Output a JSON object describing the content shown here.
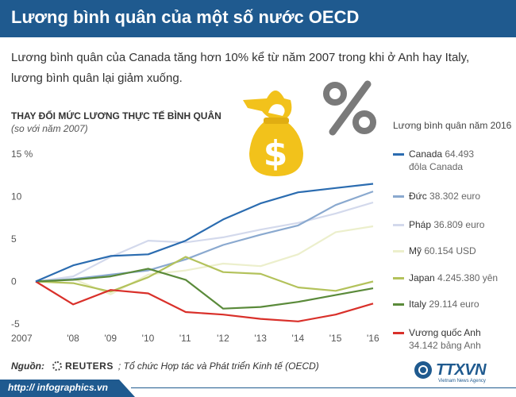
{
  "header": {
    "title": "Lương bình quân của một số nước OECD"
  },
  "intro": "Lương bình quân của Canada tăng hơn 10% kể từ năm 2007 trong khi ở Anh hay Italy, lương bình quân lại giảm xuống.",
  "legend_title": "Lương bình quân năm 2016",
  "icons": {
    "money": "money-bag-dollar-icon",
    "percent": "percent-icon",
    "source_logo": "reuters-logo-icon",
    "brand": "ttxvn-globe-icon"
  },
  "legend": [
    {
      "name": "Canada",
      "value": "64.493",
      "unit": "đôla Canada"
    },
    {
      "name": "Đức",
      "value": "38.302 euro",
      "unit": ""
    },
    {
      "name": "Pháp",
      "value": "36.809 euro",
      "unit": ""
    },
    {
      "name": "Mỹ",
      "value": "60.154 USD",
      "unit": ""
    },
    {
      "name": "Japan",
      "value": "4.245.380 yên",
      "unit": ""
    },
    {
      "name": "Italy",
      "value": "29.114 euro",
      "unit": ""
    },
    {
      "name": "Vương quốc Anh",
      "value": "",
      "unit": "34.142 bảng Anh"
    }
  ],
  "footer": {
    "source_label": "Nguồn:",
    "reuters": "REUTERS",
    "source_text": "; Tổ chức Hợp tác và Phát triển Kinh tế (OECD)",
    "url": "http:// infographics.vn",
    "brand": "TTXVN",
    "brand_sub": "Vietnam News Agency"
  },
  "chart_data": {
    "type": "line",
    "title": "THAY ĐỔI MỨC LƯƠNG THỰC TẾ BÌNH QUÂN",
    "subtitle": "(so với năm 2007)",
    "x": [
      2007,
      2008,
      2009,
      2010,
      2011,
      2012,
      2013,
      2014,
      2015,
      2016
    ],
    "x_tick_labels": [
      "2007",
      "'08",
      "'09",
      "'10",
      "'11",
      "'12",
      "'13",
      "'14",
      "'15",
      "'16"
    ],
    "y_tick_labels": [
      "15 %",
      "10",
      "5",
      "0",
      "-5"
    ],
    "y_ticks": [
      15,
      10,
      5,
      0,
      -5
    ],
    "ylim": [
      -5,
      15
    ],
    "grid": false,
    "series": [
      {
        "name": "Canada",
        "color": "#2b6cb0",
        "values": [
          0,
          1.9,
          3.0,
          3.2,
          4.8,
          7.3,
          9.2,
          10.5,
          11.0,
          11.5
        ]
      },
      {
        "name": "Đức",
        "color": "#8aa9cf",
        "values": [
          0,
          0.3,
          0.8,
          1.3,
          2.6,
          4.3,
          5.5,
          6.6,
          9.0,
          10.6
        ]
      },
      {
        "name": "Pháp",
        "color": "#d3d9ec",
        "values": [
          0,
          0.6,
          2.9,
          4.8,
          4.6,
          5.2,
          6.1,
          6.9,
          8.0,
          9.3
        ]
      },
      {
        "name": "Mỹ",
        "color": "#ecefcc",
        "values": [
          0,
          0.3,
          -1.5,
          0.8,
          1.3,
          2.1,
          1.8,
          3.2,
          5.8,
          6.5
        ]
      },
      {
        "name": "Japan",
        "color": "#b3c25b",
        "values": [
          0,
          -0.2,
          -1.2,
          0.5,
          2.9,
          1.1,
          0.9,
          -0.7,
          -1.1,
          0.0
        ]
      },
      {
        "name": "Italy",
        "color": "#5a8a3a",
        "values": [
          0,
          0.2,
          0.6,
          1.5,
          0.2,
          -3.2,
          -3.0,
          -2.4,
          -1.6,
          -0.8
        ]
      },
      {
        "name": "Vương quốc Anh",
        "color": "#d9302a",
        "values": [
          0,
          -2.7,
          -1.0,
          -1.4,
          -3.6,
          -3.9,
          -4.4,
          -4.7,
          -3.9,
          -2.6
        ]
      }
    ]
  }
}
